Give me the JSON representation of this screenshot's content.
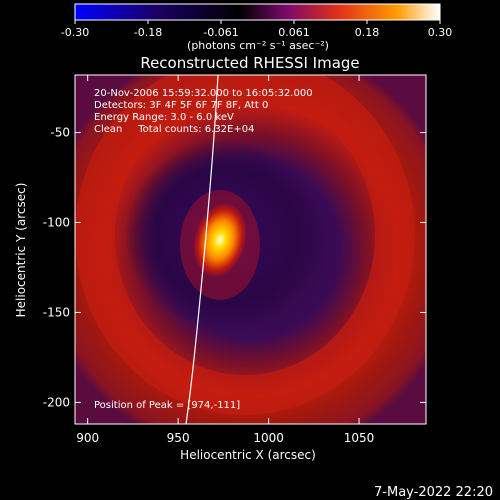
{
  "colorbar": {
    "ticks": [
      "-0.30",
      "-0.18",
      "-0.061",
      "0.061",
      "0.18",
      "0.30"
    ],
    "units": "(photons cm⁻² s⁻¹ asec⁻²)",
    "colors": [
      "#0000ff",
      "#1a0066",
      "#000000",
      "#7a0a6a",
      "#e0301a",
      "#ff9a00",
      "#ffffff"
    ]
  },
  "image": {
    "title": "Reconstructed RHESSI Image",
    "info_lines": [
      "20-Nov-2006 15:59:32.000 to 16:05:32.000",
      "Detectors: 3F 4F 5F 6F 7F 8F, Att 0",
      "Energy Range: 3.0 - 6.0 keV",
      "Clean     Total counts: 6.32E+04"
    ],
    "peak_text": "Position of Peak = [974,-111]",
    "xlabel": "Heliocentric X (arcsec)",
    "ylabel": "Heliocentric Y (arcsec)",
    "x_ticks": [
      "900",
      "950",
      "1000",
      "1050"
    ],
    "y_ticks": [
      "-50",
      "-100",
      "-150",
      "-200"
    ],
    "x_tick_values": [
      900,
      950,
      1000,
      1050
    ],
    "y_tick_values": [
      -50,
      -100,
      -150,
      -200
    ],
    "x_range": [
      893,
      1087
    ],
    "y_range": [
      -212,
      -18
    ],
    "colors": {
      "background_ring": "#c41d10",
      "inner_dark": "#2a0640",
      "core": "#ffd900"
    }
  },
  "footer": {
    "date": "7-May-2022 22:20"
  }
}
